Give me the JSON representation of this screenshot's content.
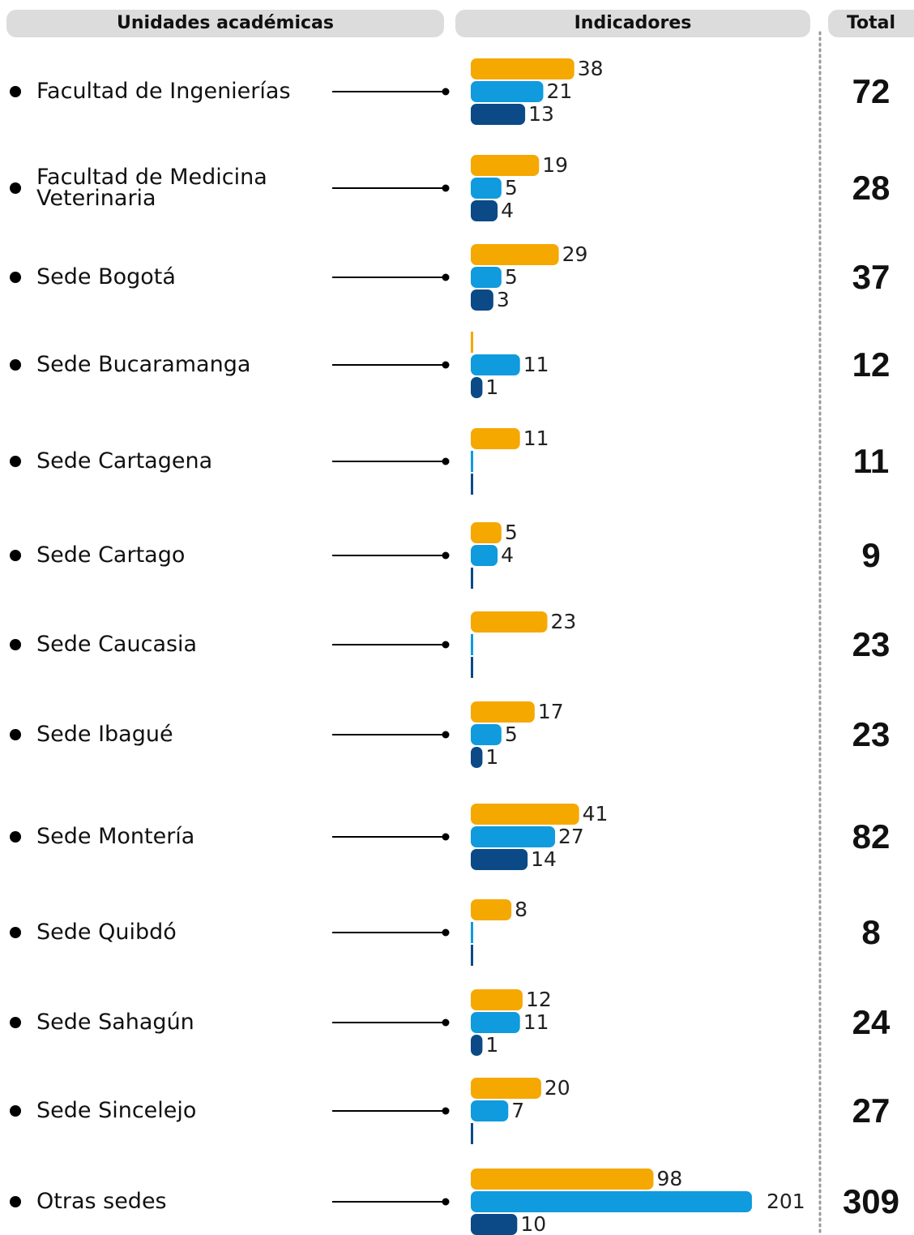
{
  "chart_data": {
    "type": "bar",
    "headers": [
      "Unidades académicas",
      "Indicadores",
      "Total"
    ],
    "categories": [
      "Facultad de Ingenierías",
      "Facultad de Medicina Veterinaria",
      "Sede Bogotá",
      "Sede Bucaramanga",
      "Sede Cartagena",
      "Sede Cartago",
      "Sede Caucasia",
      "Sede Ibagué",
      "Sede Montería",
      "Sede Quibdó",
      "Sede Sahagún",
      "Sede Sincelejo",
      "Otras sedes"
    ],
    "series": [
      {
        "color": "#f5a800",
        "values": [
          38,
          19,
          29,
          0,
          11,
          5,
          23,
          17,
          41,
          8,
          12,
          20,
          98
        ],
        "value_labels": [
          "38",
          "19",
          "29",
          null,
          "11",
          "5",
          "23",
          "17",
          "41",
          "8",
          "12",
          "20",
          "98"
        ]
      },
      {
        "color": "#0f9bdd",
        "values": [
          21,
          5,
          5,
          11,
          0,
          4,
          0,
          5,
          27,
          0,
          11,
          7,
          201
        ],
        "value_labels": [
          "21",
          "5",
          "5",
          "11",
          null,
          "4",
          null,
          "5",
          "27",
          null,
          "11",
          "7",
          "201"
        ]
      },
      {
        "color": "#0b4a86",
        "values": [
          13,
          4,
          3,
          1,
          0,
          0,
          0,
          1,
          14,
          0,
          1,
          0,
          10
        ],
        "value_labels": [
          "13",
          "4",
          "3",
          "1",
          null,
          null,
          null,
          "1",
          "14",
          null,
          "1",
          null,
          "10"
        ]
      }
    ],
    "totals": [
      72,
      28,
      37,
      12,
      11,
      9,
      23,
      23,
      82,
      8,
      24,
      27,
      309
    ]
  }
}
